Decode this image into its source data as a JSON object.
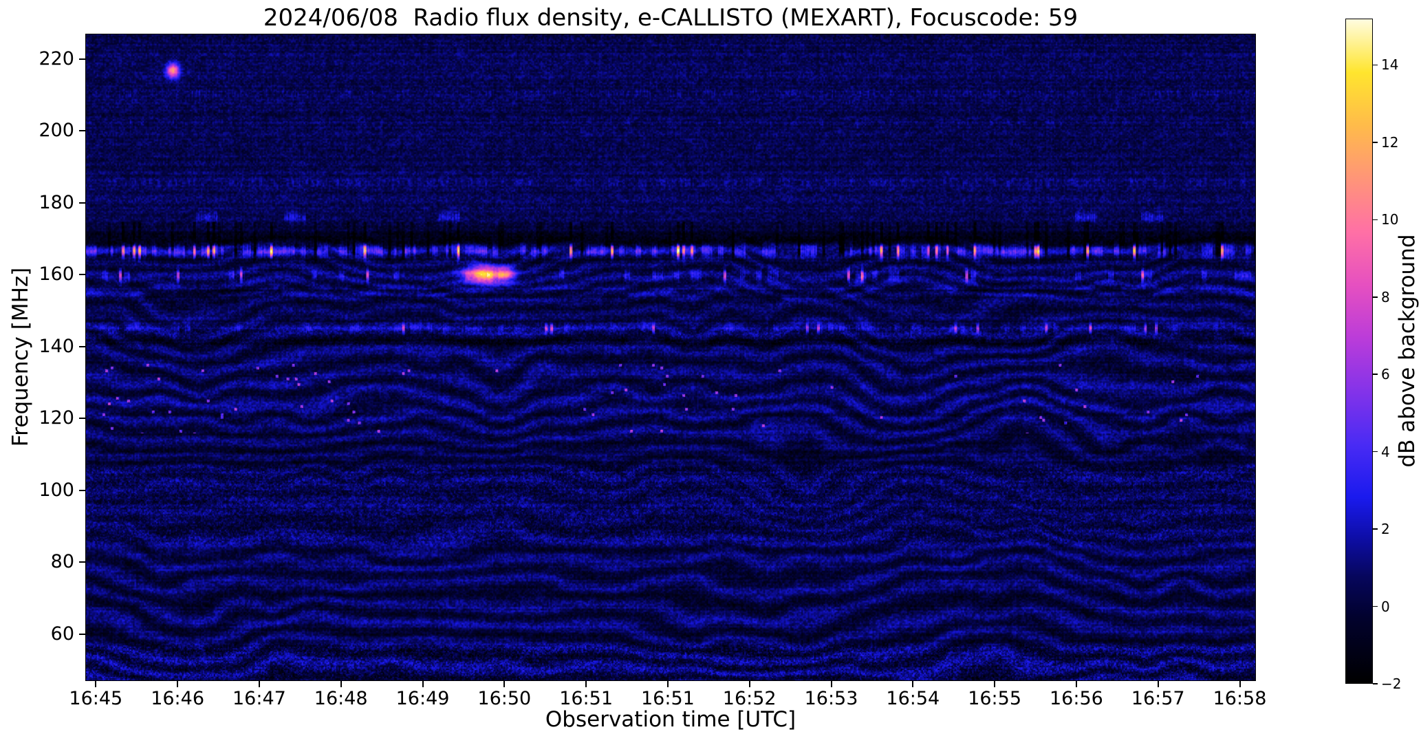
{
  "chart_data": {
    "type": "heatmap",
    "title": "2024/06/08  Radio flux density, e-CALLISTO (MEXART), Focuscode: 59",
    "xlabel": "Observation time [UTC]",
    "ylabel": "Frequency [MHz]",
    "x_tick_labels": [
      "16:45",
      "16:46",
      "16:47",
      "16:48",
      "16:49",
      "16:50",
      "16:51",
      "16:51",
      "16:52",
      "16:53",
      "16:54",
      "16:55",
      "16:56",
      "16:57",
      "16:58"
    ],
    "y_tick_values": [
      220,
      200,
      180,
      160,
      140,
      120,
      100,
      80,
      60
    ],
    "ylim": [
      47,
      227
    ],
    "grid": false,
    "colorbar": {
      "label": "dB above background",
      "tick_values": [
        14,
        12,
        10,
        8,
        6,
        4,
        2,
        0,
        -2
      ],
      "tick_labels": [
        "14",
        "12",
        "10",
        "8",
        "6",
        "4",
        "2",
        "0",
        "−2"
      ],
      "range": [
        -2,
        15.2
      ]
    },
    "colormap": [
      {
        "t": 0.0,
        "c": "#000000"
      },
      {
        "t": 0.1,
        "c": "#02022e"
      },
      {
        "t": 0.16,
        "c": "#06065c"
      },
      {
        "t": 0.22,
        "c": "#0e0ea8"
      },
      {
        "t": 0.28,
        "c": "#1a1aee"
      },
      {
        "t": 0.36,
        "c": "#4a2bf4"
      },
      {
        "t": 0.44,
        "c": "#8433e9"
      },
      {
        "t": 0.52,
        "c": "#bb3cd9"
      },
      {
        "t": 0.6,
        "c": "#e650c0"
      },
      {
        "t": 0.68,
        "c": "#ff70a5"
      },
      {
        "t": 0.76,
        "c": "#ff9578"
      },
      {
        "t": 0.84,
        "c": "#ffbb4a"
      },
      {
        "t": 0.92,
        "c": "#ffe52e"
      },
      {
        "t": 1.0,
        "c": "#fffce0"
      }
    ],
    "features": [
      {
        "kind": "base",
        "level": 0.5,
        "amp": 1.25
      },
      {
        "kind": "fringes",
        "fmin": 46,
        "fmax": 157,
        "spacing": 5.6,
        "amp": 0.95,
        "wiggle": 7,
        "weak": [
          {
            "c": 97,
            "w": 9,
            "d": 0.55
          },
          {
            "c": 150,
            "w": 5,
            "d": 0.3
          }
        ]
      },
      {
        "kind": "fringes",
        "fmin": 154,
        "fmax": 169,
        "spacing": 3.6,
        "amp": 0.75,
        "wiggle": 9,
        "weak": []
      },
      {
        "kind": "texture",
        "fmin": 84,
        "fmax": 108,
        "amp": 1.45
      },
      {
        "kind": "texture",
        "fmin": 46,
        "fmax": 58,
        "amp": 1.9
      },
      {
        "kind": "texture",
        "fmin": 139,
        "fmax": 147,
        "amp": 0.9
      },
      {
        "kind": "bline",
        "freq": 166.8,
        "width": 1.3,
        "base": 1.6,
        "dash_rate": 0.5,
        "dash_amp": 3.2,
        "dash_bits": 3,
        "spike_rate": 0.075,
        "spike_amp": 11.5,
        "gap_rate": 0.14,
        "shadow": 1.5
      },
      {
        "kind": "dline",
        "freq": 170.0,
        "width": 2.0,
        "depth": 1.7
      },
      {
        "kind": "dline",
        "freq": 164.2,
        "width": 1.0,
        "depth": 0.8
      },
      {
        "kind": "bline",
        "freq": 159.9,
        "width": 1.1,
        "base": 0.4,
        "dash_rate": 0.15,
        "dash_amp": 2.4,
        "dash_bits": 3,
        "spike_rate": 0.028,
        "spike_amp": 8
      },
      {
        "kind": "blob",
        "time": 0.34,
        "freq": 160.2,
        "tw": 0.011,
        "fw": 1.7,
        "amp": 12.5
      },
      {
        "kind": "blob",
        "time": 0.36,
        "freq": 160.4,
        "tw": 0.005,
        "fw": 1.4,
        "amp": 7
      },
      {
        "kind": "bline",
        "freq": 145.2,
        "width": 0.9,
        "base": 0.7,
        "dash_rate": 0.25,
        "dash_amp": 1.8,
        "dash_bits": 3,
        "spike_rate": 0.03,
        "spike_amp": 6.5
      },
      {
        "kind": "dline",
        "freq": 141.8,
        "width": 1.2,
        "depth": 0.9
      },
      {
        "kind": "dline",
        "freq": 110.5,
        "width": 2.4,
        "depth": 0.45
      },
      {
        "kind": "speckles",
        "fmin": 116,
        "fmax": 136,
        "density": 0.004,
        "amp": 7,
        "boost_tmax": 0.23,
        "boost": 3.4
      },
      {
        "kind": "bline",
        "freq": 176.2,
        "width": 0.9,
        "base": 0.15,
        "dash_rate": 0.05,
        "dash_amp": 2.6,
        "dash_bits": 5,
        "spike_rate": 0,
        "spike_amp": 0
      },
      {
        "kind": "bline",
        "freq": 185.8,
        "width": 0.8,
        "base": 0.25,
        "dash_rate": 0.35,
        "dash_amp": 1.0,
        "dash_bits": 2,
        "spike_rate": 0,
        "spike_amp": 0
      },
      {
        "kind": "bline",
        "freq": 202.3,
        "width": 0.7,
        "base": 0.15,
        "dash_rate": 0.22,
        "dash_amp": 0.8,
        "dash_bits": 2,
        "spike_rate": 0,
        "spike_amp": 0
      },
      {
        "kind": "bline",
        "freq": 210.8,
        "width": 0.7,
        "base": 0.2,
        "dash_rate": 0.3,
        "dash_amp": 0.9,
        "dash_bits": 1,
        "spike_rate": 0,
        "spike_amp": 0
      },
      {
        "kind": "blob",
        "time": 0.074,
        "freq": 217,
        "tw": 0.0038,
        "fw": 1.4,
        "amp": 10.5
      }
    ]
  }
}
